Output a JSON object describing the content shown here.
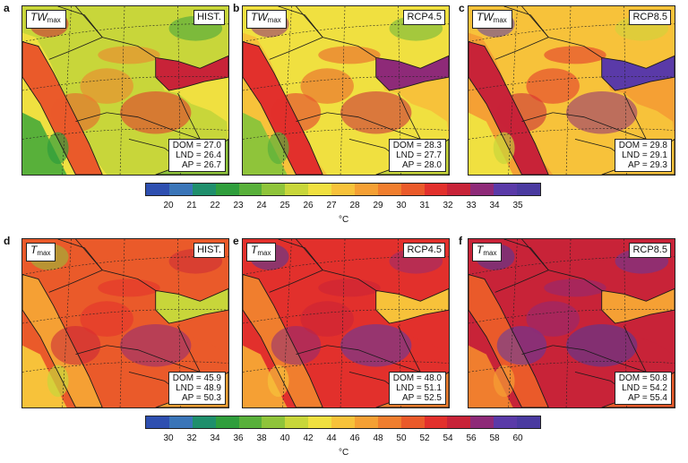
{
  "panels": [
    {
      "letter": "a",
      "var_main": "TW",
      "var_sub": "max",
      "scenario": "HIST.",
      "dom": "DOM = 27.0",
      "lnd": "LND = 26.4",
      "ap": "AP = 26.7"
    },
    {
      "letter": "b",
      "var_main": "TW",
      "var_sub": "max",
      "scenario": "RCP4.5",
      "dom": "DOM = 28.3",
      "lnd": "LND = 27.7",
      "ap": "AP = 28.0"
    },
    {
      "letter": "c",
      "var_main": "TW",
      "var_sub": "max",
      "scenario": "RCP8.5",
      "dom": "DOM = 29.8",
      "lnd": "LND = 29.1",
      "ap": "AP = 29.3"
    },
    {
      "letter": "d",
      "var_main": "T",
      "var_sub": "max",
      "scenario": "HIST.",
      "dom": "DOM = 45.9",
      "lnd": "LND = 48.9",
      "ap": "AP = 50.3"
    },
    {
      "letter": "e",
      "var_main": "T",
      "var_sub": "max",
      "scenario": "RCP4.5",
      "dom": "DOM = 48.0",
      "lnd": "LND = 51.1",
      "ap": "AP = 52.5"
    },
    {
      "letter": "f",
      "var_main": "T",
      "var_sub": "max",
      "scenario": "RCP8.5",
      "dom": "DOM = 50.8",
      "lnd": "LND = 54.2",
      "ap": "AP = 55.4"
    }
  ],
  "colorbar_top": {
    "ticks": [
      "20",
      "21",
      "22",
      "23",
      "24",
      "25",
      "26",
      "27",
      "28",
      "29",
      "30",
      "31",
      "32",
      "33",
      "34",
      "35"
    ],
    "unit": "°C"
  },
  "colorbar_bottom": {
    "ticks": [
      "30",
      "32",
      "34",
      "36",
      "38",
      "40",
      "42",
      "44",
      "46",
      "48",
      "50",
      "52",
      "54",
      "56",
      "58",
      "60"
    ],
    "unit": "°C"
  },
  "colors": {
    "scale": [
      "#2e4fb0",
      "#3a75b8",
      "#1f8f6c",
      "#2f9e3c",
      "#58b03a",
      "#8fc43a",
      "#c8d63a",
      "#f0e040",
      "#f7c23a",
      "#f5a034",
      "#f07e2e",
      "#ea5a2a",
      "#e2302c",
      "#c82338",
      "#8e2a78",
      "#5a3aa8",
      "#4a3aa0"
    ],
    "sea_hot": "#f6a638",
    "land_base_tw": "#f2b83a",
    "land_base_t": "#ea5a2a",
    "border": "#1a1a1a"
  }
}
